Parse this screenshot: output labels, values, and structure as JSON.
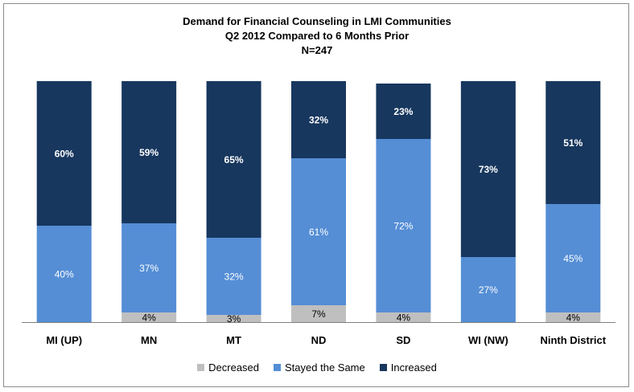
{
  "chart_data": {
    "type": "bar",
    "stacked": true,
    "title": "Demand for Financial Counseling in LMI Communities",
    "subtitle": "Q2 2012 Compared to 6 Months Prior",
    "note": "N=247",
    "categories": [
      "MI (UP)",
      "MN",
      "MT",
      "ND",
      "SD",
      "WI (NW)",
      "Ninth District"
    ],
    "series": [
      {
        "name": "Decreased",
        "color": "#bfbfbf",
        "values": [
          0,
          4,
          3,
          7,
          4,
          0,
          4
        ],
        "labels": [
          "",
          "4%",
          "3%",
          "7%",
          "4%",
          "",
          "4%"
        ]
      },
      {
        "name": "Stayed the Same",
        "color": "#558ed5",
        "values": [
          40,
          37,
          32,
          61,
          72,
          27,
          45
        ],
        "labels": [
          "40%",
          "37%",
          "32%",
          "61%",
          "72%",
          "27%",
          "45%"
        ]
      },
      {
        "name": "Increased",
        "color": "#17375e",
        "values": [
          60,
          59,
          65,
          32,
          23,
          73,
          51
        ],
        "labels": [
          "60%",
          "59%",
          "65%",
          "32%",
          "23%",
          "73%",
          "51%"
        ]
      }
    ],
    "ylim": [
      0,
      100
    ],
    "legend_position": "bottom",
    "grid": false
  }
}
